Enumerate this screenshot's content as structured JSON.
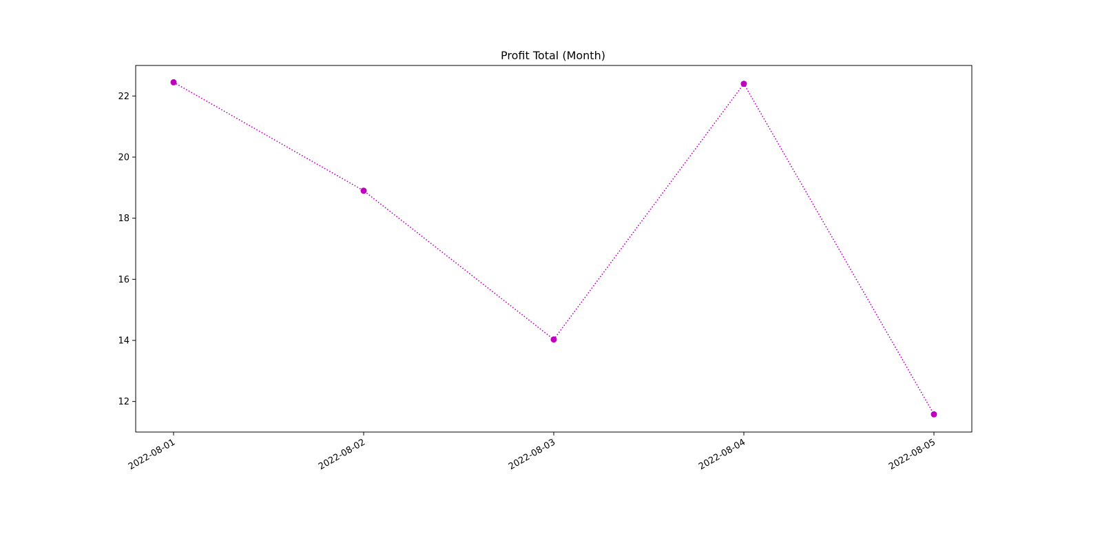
{
  "chart_data": {
    "type": "line",
    "title": "Profit Total (Month)",
    "xlabel": "",
    "ylabel": "",
    "x": [
      "2022-08-01",
      "2022-08-02",
      "2022-08-03",
      "2022-08-04",
      "2022-08-05"
    ],
    "series": [
      {
        "values": [
          22.45,
          18.9,
          14.03,
          22.4,
          11.58
        ]
      }
    ],
    "y_ticks": [
      12,
      14,
      16,
      18,
      20,
      22
    ],
    "ylim": [
      11.0,
      23.0
    ],
    "grid": false,
    "legend": "none",
    "line_style": "dotted",
    "marker": "circle",
    "color": "#bf00bf"
  }
}
